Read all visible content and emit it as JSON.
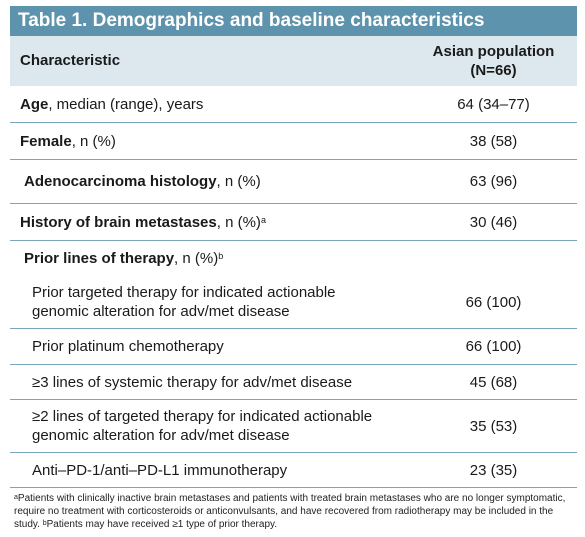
{
  "title": "Table 1. Demographics and baseline characteristics",
  "header": {
    "col1": "Characteristic",
    "col2_line1": "Asian population",
    "col2_line2": "(N=66)"
  },
  "rows": [
    {
      "bold": "Age",
      "rest": ", median (range), years",
      "sup": "",
      "value": "64 (34–77)"
    },
    {
      "bold": "Female",
      "rest": ", n (%)",
      "sup": "",
      "value": "38 (58)"
    },
    {
      "bold": "Adenocarcinoma histology",
      "rest": ", n (%)",
      "sup": "",
      "value": "63 (96)"
    },
    {
      "bold": "History of brain metastases",
      "rest": ", n (%)",
      "sup": "a",
      "value": "30 (46)"
    },
    {
      "bold": "Prior lines of therapy",
      "rest": ", n (%)",
      "sup": "b",
      "value": ""
    }
  ],
  "subrows": [
    {
      "line1": "Prior targeted therapy for indicated actionable",
      "line2": "genomic alteration for adv/met disease",
      "value": "66 (100)"
    },
    {
      "line1": "Prior platinum chemotherapy",
      "line2": "",
      "value": "66 (100)"
    },
    {
      "line1": "≥3 lines of systemic therapy for adv/met disease",
      "line2": "",
      "value": "45 (68)"
    },
    {
      "line1": "≥2 lines of targeted therapy for indicated actionable",
      "line2": "genomic alteration for adv/met disease",
      "value": "35 (53)"
    },
    {
      "line1": "Anti–PD-1/anti–PD-L1 immunotherapy",
      "line2": "",
      "value": "23 (35)"
    }
  ],
  "footnote": {
    "a_mark": "a",
    "a_text": "Patients with clinically inactive brain metastases and patients with treated brain metastases who are no longer symptomatic, require no treatment with corticosteroids or anticonvulsants, and have recovered from radiotherapy may be included in the study. ",
    "b_mark": "b",
    "b_text": "Patients may have received ≥1 type of prior therapy."
  }
}
